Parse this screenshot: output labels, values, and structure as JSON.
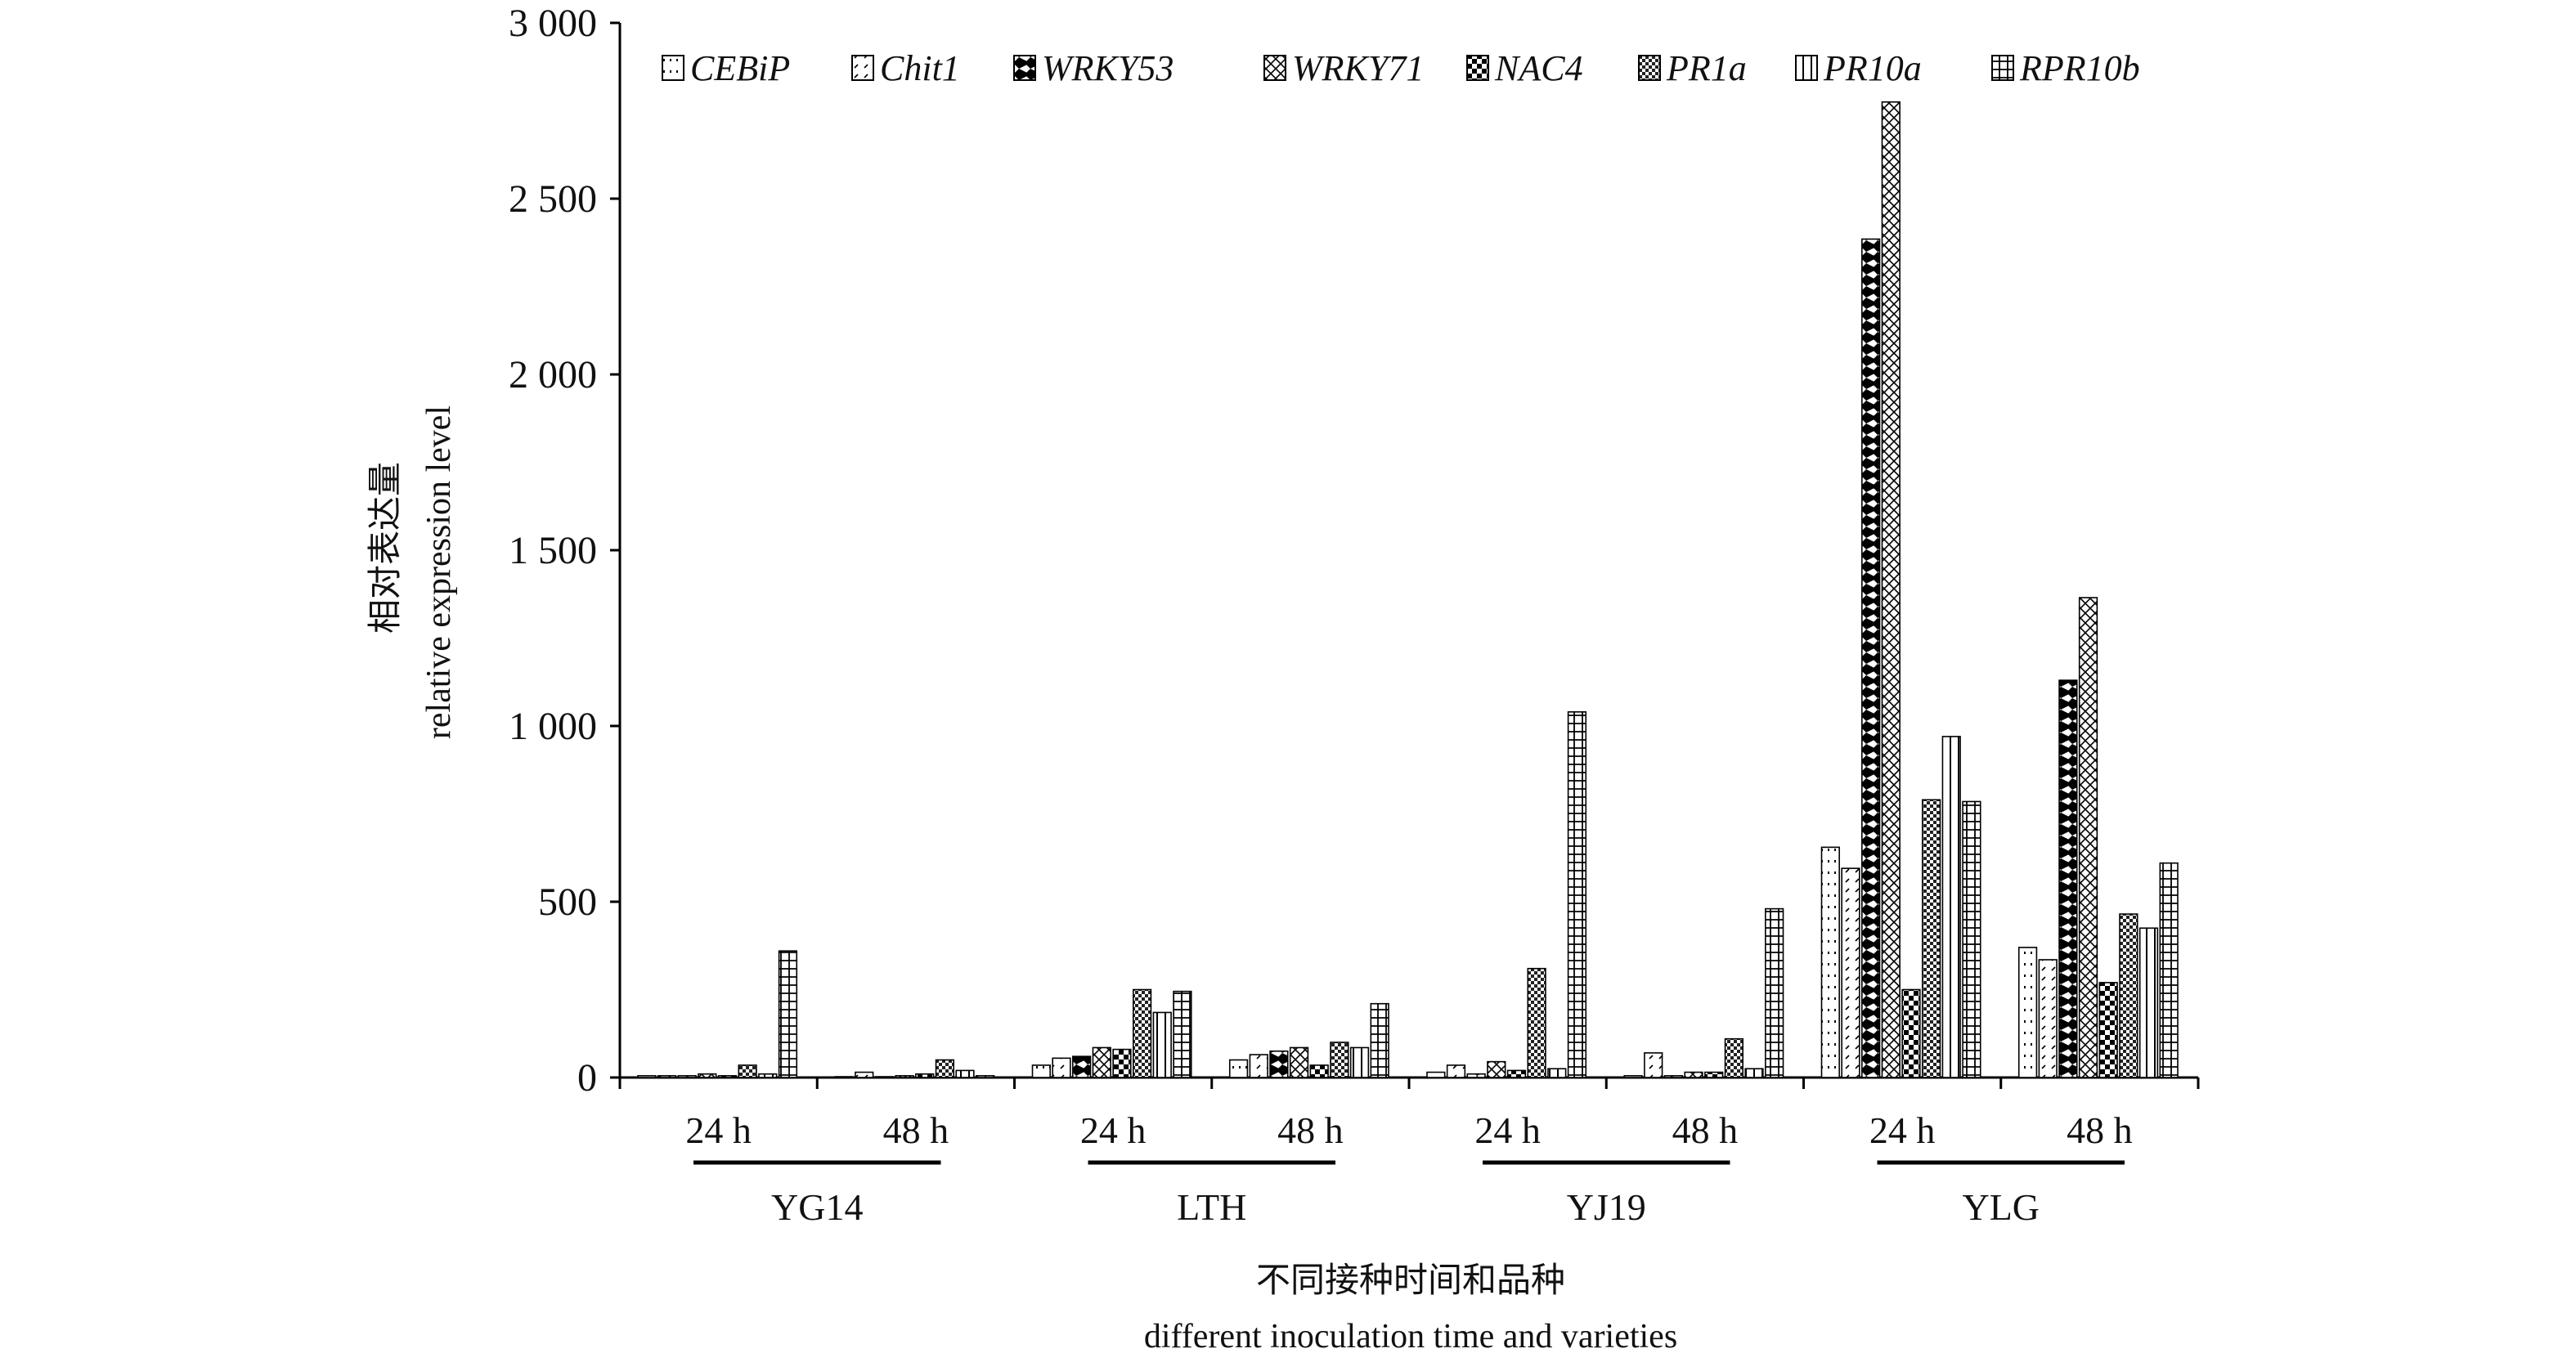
{
  "chart_data": {
    "type": "bar",
    "ylabel_cn": "相对表达量",
    "ylabel_en": "relative expression level",
    "xlabel_cn": "不同接种时间和品种",
    "xlabel_en": "different inoculation time and varieties",
    "ylim": [
      0,
      3000
    ],
    "yticks": [
      "0",
      "500",
      "1 000",
      "1 500",
      "2 000",
      "2 500",
      "3 000"
    ],
    "ytick_values": [
      0,
      500,
      1000,
      1500,
      2000,
      2500,
      3000
    ],
    "legend_position": "top",
    "varieties": [
      "YG14",
      "LTH",
      "YJ19",
      "YLG"
    ],
    "times": [
      "24 h",
      "48 h"
    ],
    "categories": [
      "YG14 24 h",
      "YG14 48 h",
      "LTH 24 h",
      "LTH 48 h",
      "YJ19 24 h",
      "YJ19 48 h",
      "YLG 24 h",
      "YLG 48 h"
    ],
    "series": [
      {
        "name": "CEBiP",
        "pattern": "dots-sparse",
        "values": [
          5,
          0,
          35,
          50,
          15,
          5,
          655,
          370
        ]
      },
      {
        "name": "Chit1",
        "pattern": "dash-diag",
        "values": [
          5,
          15,
          55,
          65,
          35,
          70,
          595,
          335
        ]
      },
      {
        "name": "WRKY53",
        "pattern": "half-black",
        "values": [
          5,
          0,
          60,
          75,
          10,
          5,
          2385,
          1130
        ]
      },
      {
        "name": "WRKY71",
        "pattern": "crosshatch",
        "values": [
          10,
          5,
          85,
          85,
          45,
          15,
          2775,
          1365
        ]
      },
      {
        "name": "NAC4",
        "pattern": "checker",
        "values": [
          5,
          10,
          80,
          35,
          20,
          15,
          250,
          270
        ]
      },
      {
        "name": "PR1a",
        "pattern": "dense-check",
        "values": [
          35,
          50,
          250,
          100,
          310,
          110,
          790,
          465
        ]
      },
      {
        "name": "PR10a",
        "pattern": "vlines",
        "values": [
          10,
          20,
          185,
          85,
          25,
          25,
          970,
          425
        ]
      },
      {
        "name": "RPR10b",
        "pattern": "grid",
        "values": [
          360,
          5,
          245,
          210,
          1040,
          480,
          785,
          610
        ]
      }
    ]
  }
}
